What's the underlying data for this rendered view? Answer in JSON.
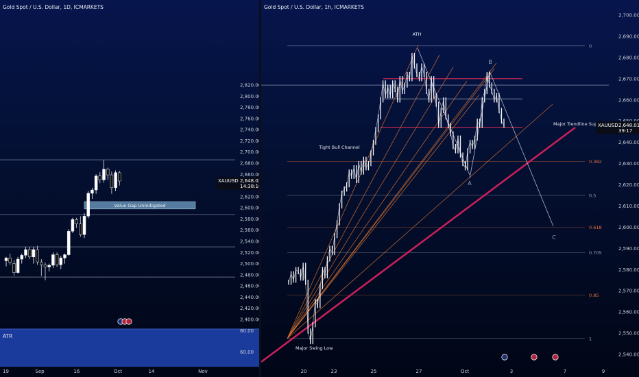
{
  "left_chart": {
    "title": "Gold Spot / U.S. Dollar, 1D, ICMARKETS",
    "ticker": "XAUUSD",
    "last_price": "2,648.02",
    "countdown": "14:38:16",
    "annotation": "Value Gap Unmitigated",
    "indicator_label": "ATR",
    "indicator_scale": [
      "80.00",
      "60.00"
    ]
  },
  "right_chart": {
    "title": "Gold Spot / U.S. Dollar, 1h, ICMARKETS",
    "ticker": "XAUUSD",
    "last_price": "2,648.01",
    "countdown": "39:17",
    "labels": {
      "ath": "ATH",
      "channel": "Tight Bull Channel",
      "trendline": "Major Trendline Support",
      "swing_low": "Major Swing Low",
      "wave_a": "A",
      "wave_b": "B",
      "wave_c": "C"
    }
  },
  "chart_data": [
    {
      "type": "candlestick",
      "title": "Gold Spot / U.S. Dollar, 1D, ICMARKETS",
      "y_ticks": [
        2400,
        2420,
        2440,
        2460,
        2480,
        2500,
        2520,
        2540,
        2560,
        2580,
        2600,
        2620,
        2640,
        2660,
        2680,
        2700,
        2720,
        2740,
        2760,
        2780,
        2800,
        2820
      ],
      "ylim": [
        2390,
        2825
      ],
      "x_ticks": [
        "19",
        "Sep",
        "16",
        "Oct",
        "14",
        "Nov"
      ],
      "last_price": 2648.02,
      "candles": [
        {
          "o": 2505,
          "h": 2512,
          "l": 2495,
          "c": 2510
        },
        {
          "o": 2510,
          "h": 2518,
          "l": 2498,
          "c": 2502
        },
        {
          "o": 2500,
          "h": 2506,
          "l": 2478,
          "c": 2484
        },
        {
          "o": 2484,
          "h": 2512,
          "l": 2482,
          "c": 2508
        },
        {
          "o": 2508,
          "h": 2518,
          "l": 2500,
          "c": 2515
        },
        {
          "o": 2515,
          "h": 2530,
          "l": 2510,
          "c": 2525
        },
        {
          "o": 2525,
          "h": 2530,
          "l": 2508,
          "c": 2512
        },
        {
          "o": 2512,
          "h": 2530,
          "l": 2500,
          "c": 2525
        },
        {
          "o": 2525,
          "h": 2532,
          "l": 2498,
          "c": 2503
        },
        {
          "o": 2503,
          "h": 2508,
          "l": 2478,
          "c": 2498
        },
        {
          "o": 2498,
          "h": 2502,
          "l": 2470,
          "c": 2494
        },
        {
          "o": 2494,
          "h": 2500,
          "l": 2486,
          "c": 2497
        },
        {
          "o": 2497,
          "h": 2520,
          "l": 2492,
          "c": 2516
        },
        {
          "o": 2516,
          "h": 2520,
          "l": 2494,
          "c": 2498
        },
        {
          "o": 2498,
          "h": 2514,
          "l": 2490,
          "c": 2510
        },
        {
          "o": 2510,
          "h": 2518,
          "l": 2500,
          "c": 2516
        },
        {
          "o": 2516,
          "h": 2562,
          "l": 2514,
          "c": 2558
        },
        {
          "o": 2558,
          "h": 2582,
          "l": 2555,
          "c": 2579
        },
        {
          "o": 2579,
          "h": 2582,
          "l": 2564,
          "c": 2571
        },
        {
          "o": 2571,
          "h": 2585,
          "l": 2548,
          "c": 2552
        },
        {
          "o": 2552,
          "h": 2590,
          "l": 2546,
          "c": 2585
        },
        {
          "o": 2585,
          "h": 2630,
          "l": 2581,
          "c": 2626
        },
        {
          "o": 2626,
          "h": 2636,
          "l": 2616,
          "c": 2632
        },
        {
          "o": 2632,
          "h": 2660,
          "l": 2625,
          "c": 2657
        },
        {
          "o": 2657,
          "h": 2664,
          "l": 2644,
          "c": 2650
        },
        {
          "o": 2650,
          "h": 2685,
          "l": 2645,
          "c": 2669
        },
        {
          "o": 2669,
          "h": 2672,
          "l": 2650,
          "c": 2659
        },
        {
          "o": 2659,
          "h": 2665,
          "l": 2625,
          "c": 2636
        },
        {
          "o": 2636,
          "h": 2667,
          "l": 2630,
          "c": 2663
        },
        {
          "o": 2663,
          "h": 2666,
          "l": 2640,
          "c": 2648
        }
      ]
    },
    {
      "type": "line",
      "title": "Gold Spot / U.S. Dollar, 1h, ICMARKETS",
      "y_ticks": [
        2540,
        2550,
        2560,
        2570,
        2580,
        2590,
        2600,
        2610,
        2620,
        2630,
        2640,
        2650,
        2660,
        2670,
        2680,
        2690,
        2700
      ],
      "ylim": [
        2537,
        2703
      ],
      "x_ticks": [
        "20",
        "23",
        "25",
        "27",
        "Oct",
        "3",
        "7",
        "9"
      ],
      "last_price": 2648.01,
      "fib_levels": [
        {
          "label": "0",
          "price": 2685.5
        },
        {
          "label": "0.382",
          "price": 2631
        },
        {
          "label": "0.5",
          "price": 2615
        },
        {
          "label": "0.618",
          "price": 2600
        },
        {
          "label": "0.705",
          "price": 2588
        },
        {
          "label": "0.85",
          "price": 2568
        },
        {
          "label": "1",
          "price": 2547.5
        }
      ],
      "price_path": [
        2574,
        2578,
        2575,
        2580,
        2579,
        2576,
        2582,
        2574,
        2551,
        2546,
        2554,
        2565,
        2563,
        2572,
        2580,
        2577,
        2585,
        2590,
        2588,
        2596,
        2602,
        2610,
        2616,
        2618,
        2620,
        2626,
        2624,
        2628,
        2622,
        2630,
        2626,
        2632,
        2628,
        2630,
        2635,
        2640,
        2646,
        2652,
        2660,
        2668,
        2662,
        2666,
        2662,
        2668,
        2665,
        2660,
        2670,
        2664,
        2667,
        2672,
        2670,
        2681,
        2676,
        2672,
        2670,
        2676,
        2672,
        2664,
        2660,
        2670,
        2662,
        2658,
        2648,
        2655,
        2660,
        2652,
        2648,
        2644,
        2638,
        2636,
        2642,
        2634,
        2630,
        2628,
        2636,
        2640,
        2638,
        2642,
        2650,
        2648,
        2660,
        2664,
        2672,
        2667,
        2664,
        2660,
        2662,
        2655,
        2650,
        2648
      ]
    }
  ]
}
